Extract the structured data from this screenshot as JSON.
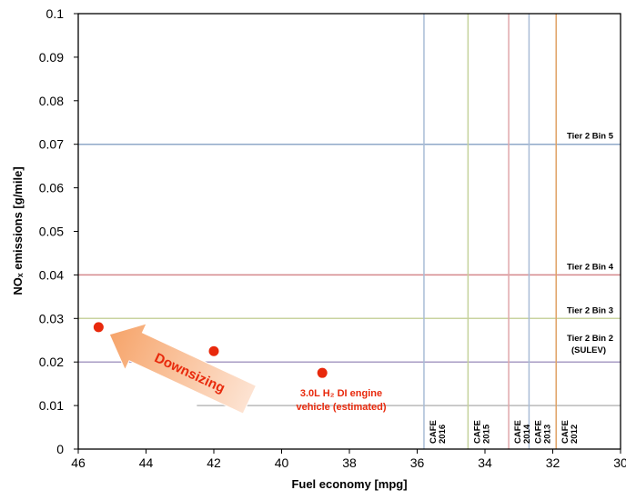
{
  "chart_data": {
    "type": "scatter",
    "xlabel": "Fuel economy [mpg]",
    "ylabel": "NOₓ emissions [g/mile]",
    "xlim": [
      46,
      30
    ],
    "x_reversed": true,
    "ylim": [
      0,
      0.1
    ],
    "x_ticks": [
      "46",
      "44",
      "42",
      "40",
      "38",
      "36",
      "34",
      "32",
      "30"
    ],
    "y_ticks": [
      "0",
      "0.01",
      "0.02",
      "0.03",
      "0.04",
      "0.05",
      "0.06",
      "0.07",
      "0.08",
      "0.09",
      "0.1"
    ],
    "grid": false,
    "points": [
      {
        "x": 45.4,
        "y": 0.028
      },
      {
        "x": 42.0,
        "y": 0.0225
      },
      {
        "x": 38.8,
        "y": 0.0175
      }
    ],
    "point_color": "#e8290c",
    "horizontal_limits": [
      {
        "label": "Tier 2 Bin 5",
        "y": 0.07,
        "color": "#8fa8c8"
      },
      {
        "label": "Tier 2 Bin 4",
        "y": 0.04,
        "color": "#d4888c"
      },
      {
        "label": "Tier 2 Bin 3",
        "y": 0.03,
        "color": "#c9d3a0"
      },
      {
        "label": "Tier 2 Bin 2",
        "label2": "(SULEV)",
        "y": 0.02,
        "color": "#a89cc4"
      },
      {
        "label": "",
        "y": 0.01,
        "color": "#b9b9b9"
      }
    ],
    "vertical_limits": [
      {
        "line1": "CAFE",
        "line2": "2016",
        "x": 35.8,
        "color": "#a9bcd6"
      },
      {
        "line1": "CAFE",
        "line2": "2015",
        "x": 34.5,
        "color": "#c5d29b"
      },
      {
        "line1": "CAFE",
        "line2": "2014",
        "x": 33.3,
        "color": "#e0a7aa"
      },
      {
        "line1": "CAFE",
        "line2": "2013",
        "x": 32.7,
        "color": "#a9bcd6"
      },
      {
        "line1": "CAFE",
        "line2": "2012",
        "x": 31.9,
        "color": "#e0a366"
      }
    ],
    "annotations": {
      "point_label_line1": "3.0L H₂ DI engine",
      "point_label_line2": "vehicle (estimated)",
      "arrow_label": "Downsizing"
    }
  }
}
